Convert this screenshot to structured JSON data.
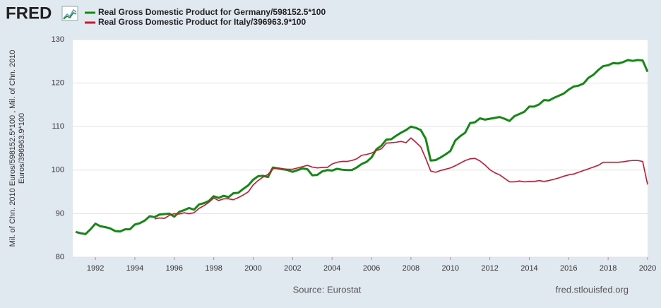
{
  "header": {
    "logo": "FRED"
  },
  "footer": {
    "source": "Source: Eurostat",
    "site": "fred.stlouisfed.org"
  },
  "chart_data": {
    "type": "line",
    "ylabel": [
      "Mil. of Chn. 2010 Euros/598152.5*100 , Mil. of Chn. 2010",
      "Euros/396963.9*100"
    ],
    "xlim": [
      1990.85,
      2020.0
    ],
    "xticks": [
      1992,
      1994,
      1996,
      1998,
      2000,
      2002,
      2004,
      2006,
      2008,
      2010,
      2012,
      2014,
      2016,
      2018,
      2020
    ],
    "ylim": [
      80,
      130
    ],
    "yticks": [
      80,
      90,
      100,
      110,
      120,
      130
    ],
    "grid": true,
    "x": [
      1991.0,
      1991.25,
      1991.5,
      1991.75,
      1992.0,
      1992.25,
      1992.5,
      1992.75,
      1993.0,
      1993.25,
      1993.5,
      1993.75,
      1994.0,
      1994.25,
      1994.5,
      1994.75,
      1995.0,
      1995.25,
      1995.5,
      1995.75,
      1996.0,
      1996.25,
      1996.5,
      1996.75,
      1997.0,
      1997.25,
      1997.5,
      1997.75,
      1998.0,
      1998.25,
      1998.5,
      1998.75,
      1999.0,
      1999.25,
      1999.5,
      1999.75,
      2000.0,
      2000.25,
      2000.5,
      2000.75,
      2001.0,
      2001.25,
      2001.5,
      2001.75,
      2002.0,
      2002.25,
      2002.5,
      2002.75,
      2003.0,
      2003.25,
      2003.5,
      2003.75,
      2004.0,
      2004.25,
      2004.5,
      2004.75,
      2005.0,
      2005.25,
      2005.5,
      2005.75,
      2006.0,
      2006.25,
      2006.5,
      2006.75,
      2007.0,
      2007.25,
      2007.5,
      2007.75,
      2008.0,
      2008.25,
      2008.5,
      2008.75,
      2009.0,
      2009.25,
      2009.5,
      2009.75,
      2010.0,
      2010.25,
      2010.5,
      2010.75,
      2011.0,
      2011.25,
      2011.5,
      2011.75,
      2012.0,
      2012.25,
      2012.5,
      2012.75,
      2013.0,
      2013.25,
      2013.5,
      2013.75,
      2014.0,
      2014.25,
      2014.5,
      2014.75,
      2015.0,
      2015.25,
      2015.5,
      2015.75,
      2016.0,
      2016.25,
      2016.5,
      2016.75,
      2017.0,
      2017.25,
      2017.5,
      2017.75,
      2018.0,
      2018.25,
      2018.5,
      2018.75,
      2019.0,
      2019.25,
      2019.5,
      2019.75,
      2020.0
    ],
    "series": [
      {
        "name": "Real Gross Domestic Product for Germany/598152.5*100",
        "color": "#118a12",
        "line_width": 3,
        "values": [
          85.8,
          85.5,
          85.3,
          86.4,
          87.7,
          87.1,
          86.9,
          86.6,
          86.0,
          85.9,
          86.4,
          86.4,
          87.5,
          87.8,
          88.4,
          89.4,
          89.2,
          89.8,
          89.9,
          90.0,
          89.3,
          90.4,
          90.8,
          91.3,
          90.9,
          92.1,
          92.4,
          92.9,
          94.0,
          93.6,
          94.1,
          93.8,
          94.7,
          94.8,
          95.7,
          96.5,
          97.8,
          98.6,
          98.7,
          98.4,
          100.6,
          100.4,
          100.2,
          100.0,
          99.6,
          100.0,
          100.4,
          100.2,
          98.8,
          98.9,
          99.7,
          100.0,
          99.9,
          100.3,
          100.1,
          100.0,
          100.0,
          100.6,
          101.4,
          101.9,
          102.9,
          104.8,
          105.6,
          107.0,
          107.1,
          107.9,
          108.6,
          109.2,
          110.0,
          109.7,
          109.2,
          107.2,
          102.2,
          102.3,
          102.9,
          103.6,
          104.4,
          106.8,
          107.8,
          108.6,
          110.8,
          111.0,
          111.9,
          111.6,
          111.8,
          112.0,
          112.2,
          111.8,
          111.3,
          112.4,
          112.9,
          113.4,
          114.6,
          114.6,
          115.1,
          116.1,
          116.0,
          116.6,
          117.1,
          117.6,
          118.5,
          119.2,
          119.4,
          119.9,
          121.2,
          121.9,
          123.0,
          123.9,
          124.1,
          124.6,
          124.5,
          124.8,
          125.3,
          125.1,
          125.3,
          125.2,
          122.6
        ]
      },
      {
        "name": "Real Gross Domestic Product for Italy/396963.9*100",
        "color": "#cc1530",
        "line_width": 1.6,
        "values": [
          null,
          null,
          null,
          null,
          null,
          null,
          null,
          null,
          null,
          null,
          null,
          null,
          null,
          null,
          null,
          null,
          88.8,
          89.0,
          88.9,
          89.6,
          90.0,
          89.9,
          90.2,
          90.0,
          90.2,
          91.2,
          91.8,
          92.6,
          93.6,
          93.0,
          93.4,
          93.4,
          93.2,
          93.7,
          94.3,
          95.0,
          96.6,
          97.6,
          98.4,
          99.0,
          100.3,
          100.5,
          100.3,
          100.2,
          100.2,
          100.5,
          100.8,
          101.1,
          100.7,
          100.5,
          100.6,
          100.6,
          101.4,
          101.8,
          102.0,
          102.0,
          102.2,
          102.6,
          103.4,
          103.6,
          103.9,
          104.5,
          104.9,
          106.2,
          106.3,
          106.4,
          106.6,
          106.3,
          107.4,
          106.4,
          105.3,
          102.7,
          99.8,
          99.5,
          99.9,
          100.2,
          100.5,
          101.0,
          101.6,
          102.2,
          102.6,
          102.7,
          102.1,
          101.2,
          100.1,
          99.4,
          98.9,
          98.1,
          97.3,
          97.3,
          97.5,
          97.3,
          97.4,
          97.4,
          97.6,
          97.4,
          97.6,
          97.9,
          98.2,
          98.6,
          98.9,
          99.1,
          99.5,
          99.9,
          100.3,
          100.7,
          101.1,
          101.8,
          101.8,
          101.8,
          101.8,
          101.9,
          102.1,
          102.2,
          102.2,
          102.0,
          96.7
        ]
      }
    ]
  }
}
